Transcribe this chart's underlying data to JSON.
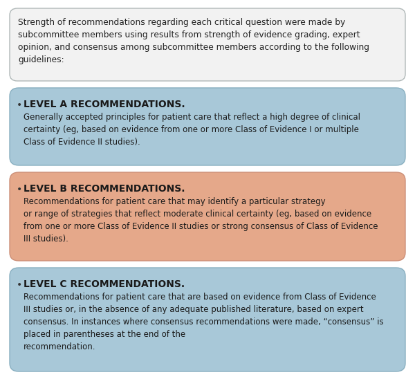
{
  "background_color": "#ffffff",
  "intro_box": {
    "bg_color": "#f2f2f2",
    "border_color": "#b0b8b8",
    "text": "Strength of recommendations regarding each critical question were made by\nsubcommittee members using results from strength of evidence grading, expert\nopinion, and consensus among subcommittee members according to the following\nguidelines:",
    "text_color": "#222222",
    "font_size": 8.8
  },
  "boxes": [
    {
      "bg_color": "#a8c8d8",
      "border_color": "#88afc0",
      "title": "LEVEL A RECOMMENDATIONS.",
      "title_color": "#1a1a1a",
      "title_fontsize": 10.0,
      "body": "Generally accepted principles for patient care that reflect a high degree of clinical\ncertainty (eg, based on evidence from one or more Class of Evidence I or multiple\nClass of Evidence II studies).",
      "body_color": "#1a1a1a",
      "body_fontsize": 8.5,
      "bullet_color": "#333333"
    },
    {
      "bg_color": "#e5a88a",
      "border_color": "#cc8f78",
      "title": "LEVEL B RECOMMENDATIONS.",
      "title_color": "#1a1a1a",
      "title_fontsize": 10.0,
      "body": "Recommendations for patient care that may identify a particular strategy\nor range of strategies that reflect moderate clinical certainty (eg, based on evidence\nfrom one or more Class of Evidence II studies or strong consensus of Class of Evidence\nIII studies).",
      "body_color": "#1a1a1a",
      "body_fontsize": 8.5,
      "bullet_color": "#333333"
    },
    {
      "bg_color": "#a8c8d8",
      "border_color": "#88afc0",
      "title": "LEVEL C RECOMMENDATIONS.",
      "title_color": "#1a1a1a",
      "title_fontsize": 10.0,
      "body": "Recommendations for patient care that are based on evidence from Class of Evidence\nIII studies or, in the absence of any adequate published literature, based on expert\nconsensus. In instances where consensus recommendations were made, “consensus” is\nplaced in parentheses at the end of the\nrecommendation.",
      "body_color": "#1a1a1a",
      "body_fontsize": 8.5,
      "bullet_color": "#333333"
    }
  ],
  "fig_width": 6.0,
  "fig_height": 5.45,
  "dpi": 100
}
